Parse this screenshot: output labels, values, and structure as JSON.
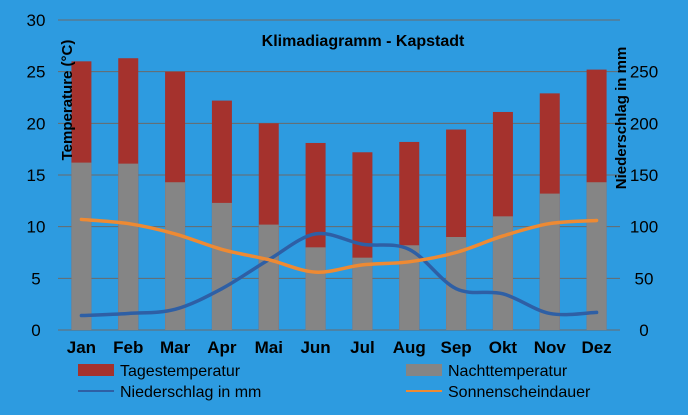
{
  "chart_data": {
    "type": "bar",
    "title": "Klimadiagramm -  Kapstadt",
    "ylabel_left": "Temperature (°C)",
    "ylabel_right": "Niederschlag in mm",
    "categories": [
      "Jan",
      "Feb",
      "Mar",
      "Apr",
      "Mai",
      "Jun",
      "Jul",
      "Aug",
      "Sep",
      "Okt",
      "Nov",
      "Dez"
    ],
    "ylim_left": [
      0,
      30
    ],
    "yticks_left": [
      0,
      5,
      10,
      15,
      20,
      25,
      30
    ],
    "ylim_right": [
      0,
      300
    ],
    "yticks_right": [
      0,
      50,
      100,
      150,
      200,
      250
    ],
    "grid": "horizontal",
    "legend_position": "bottom",
    "series": [
      {
        "name": "Tagestemperatur",
        "kind": "bar",
        "axis": "left",
        "color": "#a5322d",
        "values": [
          26,
          26.3,
          25,
          22.2,
          20,
          18.1,
          17.2,
          18.2,
          19.4,
          21.1,
          22.9,
          25.2
        ]
      },
      {
        "name": "Nachttemperatur",
        "kind": "bar",
        "axis": "left",
        "color": "#858585",
        "values": [
          16.2,
          16.1,
          14.3,
          12.3,
          10.2,
          8,
          7,
          8.2,
          9,
          11,
          13.2,
          14.3
        ]
      },
      {
        "name": "Niederschlag in mm",
        "kind": "line",
        "axis": "right",
        "color": "#2e5fa5",
        "values": [
          14,
          16,
          20,
          40,
          68,
          93,
          83,
          78,
          40,
          35,
          16,
          17
        ]
      },
      {
        "name": "Sonnenscheindauer",
        "kind": "line",
        "axis": "left",
        "color": "#ee8a33",
        "values": [
          10.7,
          10.3,
          9.3,
          7.8,
          6.8,
          5.6,
          6.3,
          6.6,
          7.5,
          9.1,
          10.3,
          10.6
        ]
      }
    ]
  },
  "legend": {
    "day_label": "Tagestemperatur",
    "night_label": "Nachttemperatur",
    "rain_label": "Niederschlag in mm",
    "sun_label": "Sonnenscheindauer"
  }
}
